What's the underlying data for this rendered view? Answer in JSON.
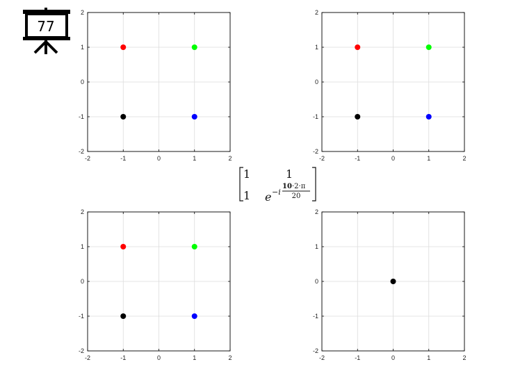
{
  "slide": {
    "number": "77",
    "icon": "presentation-board-icon"
  },
  "matrix": {
    "r1c1": "1",
    "r1c2": "1",
    "r2c1": "1",
    "base": "e",
    "exp_prefix": "−i",
    "num_highlight": "10",
    "num_rest": "·2·π",
    "den": "20",
    "highlight_color": "#e02020"
  },
  "chart_data": [
    {
      "type": "scatter",
      "xlim": [
        -2,
        2
      ],
      "ylim": [
        -2,
        2
      ],
      "xticks": [
        "-2",
        "-1",
        "0",
        "1",
        "2"
      ],
      "yticks": [
        "-2",
        "-1",
        "0",
        "1",
        "2"
      ],
      "grid": true,
      "points": [
        {
          "x": -1,
          "y": 1,
          "color": "#ff0000"
        },
        {
          "x": 1,
          "y": 1,
          "color": "#00ff00"
        },
        {
          "x": -1,
          "y": -1,
          "color": "#000000"
        },
        {
          "x": 1,
          "y": -1,
          "color": "#0000ff"
        }
      ]
    },
    {
      "type": "scatter",
      "xlim": [
        -2,
        2
      ],
      "ylim": [
        -2,
        2
      ],
      "xticks": [
        "-2",
        "-1",
        "0",
        "1",
        "2"
      ],
      "yticks": [
        "-2",
        "-1",
        "0",
        "1",
        "2"
      ],
      "grid": true,
      "points": [
        {
          "x": -1,
          "y": 1,
          "color": "#ff0000"
        },
        {
          "x": 1,
          "y": 1,
          "color": "#00ff00"
        },
        {
          "x": -1,
          "y": -1,
          "color": "#000000"
        },
        {
          "x": 1,
          "y": -1,
          "color": "#0000ff"
        }
      ]
    },
    {
      "type": "scatter",
      "xlim": [
        -2,
        2
      ],
      "ylim": [
        -2,
        2
      ],
      "xticks": [
        "-2",
        "-1",
        "0",
        "1",
        "2"
      ],
      "yticks": [
        "-2",
        "-1",
        "0",
        "1",
        "2"
      ],
      "grid": true,
      "points": [
        {
          "x": -1,
          "y": 1,
          "color": "#ff0000"
        },
        {
          "x": 1,
          "y": 1,
          "color": "#00ff00"
        },
        {
          "x": -1,
          "y": -1,
          "color": "#000000"
        },
        {
          "x": 1,
          "y": -1,
          "color": "#0000ff"
        }
      ]
    },
    {
      "type": "scatter",
      "xlim": [
        -2,
        2
      ],
      "ylim": [
        -2,
        2
      ],
      "xticks": [
        "-2",
        "-1",
        "0",
        "1",
        "2"
      ],
      "yticks": [
        "-2",
        "-1",
        "0",
        "1",
        "2"
      ],
      "grid": true,
      "points": [
        {
          "x": 0,
          "y": 0,
          "color": "#000000"
        }
      ]
    }
  ]
}
